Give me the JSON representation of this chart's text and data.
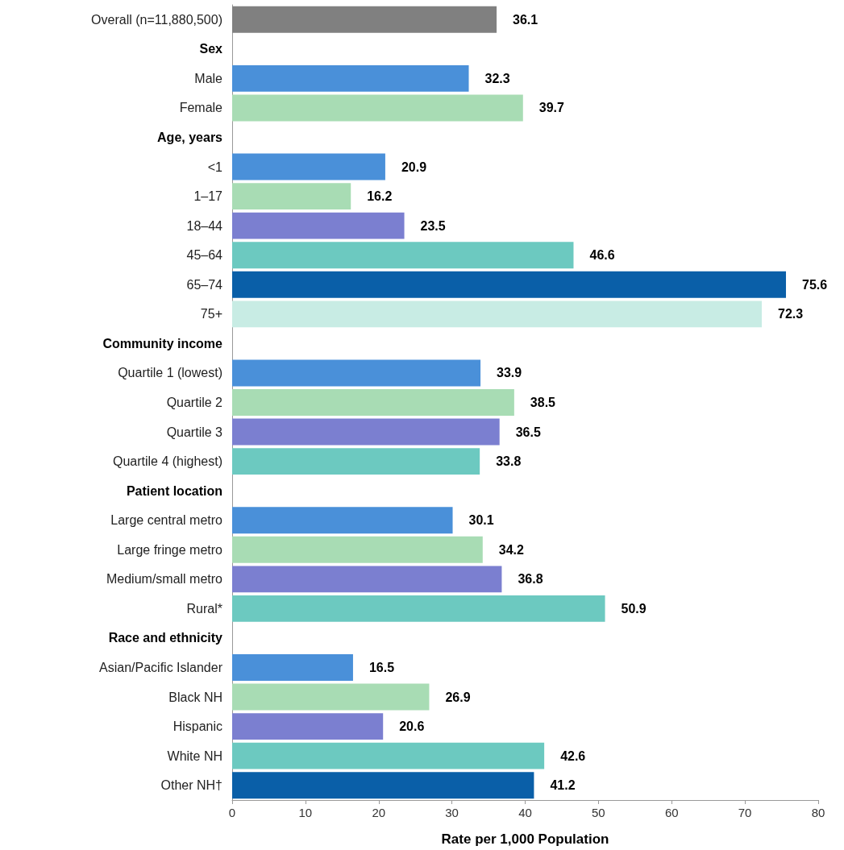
{
  "chart_data": {
    "type": "bar",
    "orientation": "horizontal",
    "xlabel": "Rate per 1,000 Population",
    "categories": [
      "Overall (n=11,880,500)",
      "Sex",
      "Male",
      "Female",
      "Age, years",
      "<1",
      "1–17",
      "18–44",
      "45–64",
      "65–74",
      "75+",
      "Community income",
      "Quartile 1 (lowest)",
      "Quartile 2",
      "Quartile 3",
      "Quartile 4 (highest)",
      "Patient location",
      "Large central metro",
      "Large fringe metro",
      "Medium/small metro",
      "Rural*",
      "Race and ethnicity",
      "Asian/Pacific Islander",
      "Black NH",
      "Hispanic",
      "White NH",
      "Other NH†"
    ],
    "values": [
      36.1,
      null,
      32.3,
      39.7,
      null,
      20.9,
      16.2,
      23.5,
      46.6,
      75.6,
      72.3,
      null,
      33.9,
      38.5,
      36.5,
      33.8,
      null,
      30.1,
      34.2,
      36.8,
      50.9,
      null,
      16.5,
      26.9,
      20.6,
      42.6,
      41.2
    ],
    "colors": [
      "#808080",
      null,
      "#4a90d9",
      "#a8dcb4",
      null,
      "#4a90d9",
      "#a8dcb4",
      "#7b7fd0",
      "#6cc9c0",
      "#0a5fa8",
      "#c8ece4",
      null,
      "#4a90d9",
      "#a8dcb4",
      "#7b7fd0",
      "#6cc9c0",
      null,
      "#4a90d9",
      "#a8dcb4",
      "#7b7fd0",
      "#6cc9c0",
      null,
      "#4a90d9",
      "#a8dcb4",
      "#7b7fd0",
      "#6cc9c0",
      "#0a5fa8"
    ],
    "xlim": [
      0,
      80
    ],
    "xticks": [
      0,
      10,
      20,
      30,
      40,
      50,
      60,
      70,
      80
    ],
    "grid": false,
    "data_labels": true
  }
}
